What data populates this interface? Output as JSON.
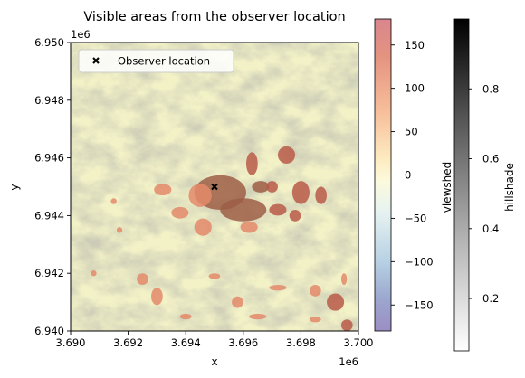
{
  "chart_data": {
    "type": "heatmap",
    "title": "Visible areas from the observer location",
    "xlabel": "x",
    "ylabel": "y",
    "x_offset_text": "1e6",
    "y_offset_text": "1e6",
    "xlim": [
      3.69,
      3.7
    ],
    "ylim": [
      6.94,
      6.95
    ],
    "x_ticks": [
      3.69,
      3.692,
      3.694,
      3.696,
      3.698,
      3.7
    ],
    "x_tick_labels": [
      "3.690",
      "3.692",
      "3.694",
      "3.696",
      "3.698",
      "3.700"
    ],
    "y_ticks": [
      6.94,
      6.942,
      6.944,
      6.946,
      6.948,
      6.95
    ],
    "y_tick_labels": [
      "6.940",
      "6.942",
      "6.944",
      "6.946",
      "6.948",
      "6.950"
    ],
    "observer": {
      "x": 3.695,
      "y": 6.945
    },
    "legend": {
      "label": "Observer location",
      "placement": "top-left"
    },
    "colorbars": [
      {
        "label": "viewshed",
        "cmap": "RdYlBu_r",
        "range": [
          -180,
          180
        ],
        "ticks": [
          150,
          100,
          50,
          0,
          -50,
          -100,
          -150
        ],
        "tick_labels": [
          "150",
          "100",
          "50",
          "0",
          "−50",
          "−100",
          "−150"
        ]
      },
      {
        "label": "hillshade",
        "cmap": "Greys",
        "range": [
          0.05,
          1.0
        ],
        "ticks": [
          0.8,
          0.6,
          0.4,
          0.2
        ],
        "tick_labels": [
          "0.8",
          "0.6",
          "0.4",
          "0.2"
        ]
      }
    ],
    "colors": {
      "terrain_light": "#f3f2c7",
      "terrain_dark": "#9b9b78",
      "visible": "#e38a6a",
      "visible_dark": "#9c5e45",
      "visible_far": "#b85a48"
    }
  }
}
